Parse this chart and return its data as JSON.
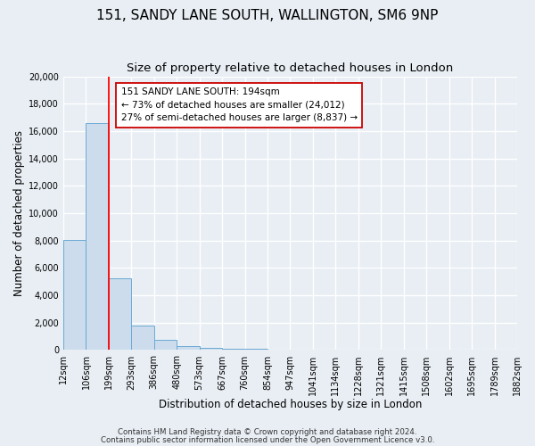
{
  "title": "151, SANDY LANE SOUTH, WALLINGTON, SM6 9NP",
  "subtitle": "Size of property relative to detached houses in London",
  "xlabel": "Distribution of detached houses by size in London",
  "ylabel": "Number of detached properties",
  "bar_heights": [
    8050,
    16550,
    5250,
    1800,
    750,
    300,
    150,
    100,
    100,
    0,
    0,
    0,
    0,
    0,
    0,
    0,
    0,
    0,
    0,
    0
  ],
  "bin_edges": [
    12,
    106,
    199,
    293,
    386,
    480,
    573,
    667,
    760,
    854,
    947,
    1041,
    1134,
    1228,
    1321,
    1415,
    1508,
    1602,
    1695,
    1789,
    1882
  ],
  "tick_labels": [
    "12sqm",
    "106sqm",
    "199sqm",
    "293sqm",
    "386sqm",
    "480sqm",
    "573sqm",
    "667sqm",
    "760sqm",
    "854sqm",
    "947sqm",
    "1041sqm",
    "1134sqm",
    "1228sqm",
    "1321sqm",
    "1415sqm",
    "1508sqm",
    "1602sqm",
    "1695sqm",
    "1789sqm",
    "1882sqm"
  ],
  "bar_color": "#ccdcec",
  "bar_edge_color": "#6aaad4",
  "red_line_x": 199,
  "ylim": [
    0,
    20000
  ],
  "yticks": [
    0,
    2000,
    4000,
    6000,
    8000,
    10000,
    12000,
    14000,
    16000,
    18000,
    20000
  ],
  "annotation_line1": "151 SANDY LANE SOUTH: 194sqm",
  "annotation_line2": "← 73% of detached houses are smaller (24,012)",
  "annotation_line3": "27% of semi-detached houses are larger (8,837) →",
  "footer1": "Contains HM Land Registry data © Crown copyright and database right 2024.",
  "footer2": "Contains public sector information licensed under the Open Government Licence v3.0.",
  "fig_bg_color": "#e8eef4",
  "plot_bg_color": "#e8eef4",
  "grid_color": "#ffffff",
  "title_fontsize": 11,
  "subtitle_fontsize": 9.5,
  "axis_label_fontsize": 8.5,
  "tick_fontsize": 7
}
